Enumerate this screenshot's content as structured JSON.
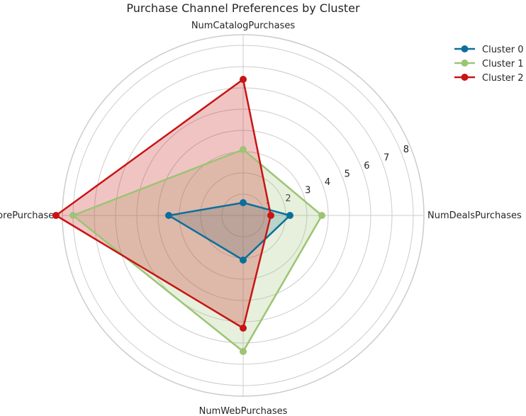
{
  "chart_data": {
    "type": "radar",
    "title": "Purchase Channel Preferences by Cluster",
    "axes": [
      "NumDealsPurchases",
      "NumCatalogPurchases",
      "NumStorePurchases",
      "NumWebPurchases"
    ],
    "rmax": 8.5,
    "ticks": [
      1,
      2,
      3,
      4,
      5,
      6,
      7,
      8
    ],
    "grid": true,
    "legend_position": "top-right",
    "series": [
      {
        "name": "Cluster 0",
        "color": "#0c6f9b",
        "values": [
          2.2,
          0.6,
          3.5,
          2.1
        ]
      },
      {
        "name": "Cluster 1",
        "color": "#9cc474",
        "values": [
          3.7,
          3.1,
          8.0,
          6.4
        ]
      },
      {
        "name": "Cluster 2",
        "color": "#c81414",
        "values": [
          1.3,
          6.4,
          8.8,
          5.3
        ]
      }
    ]
  }
}
